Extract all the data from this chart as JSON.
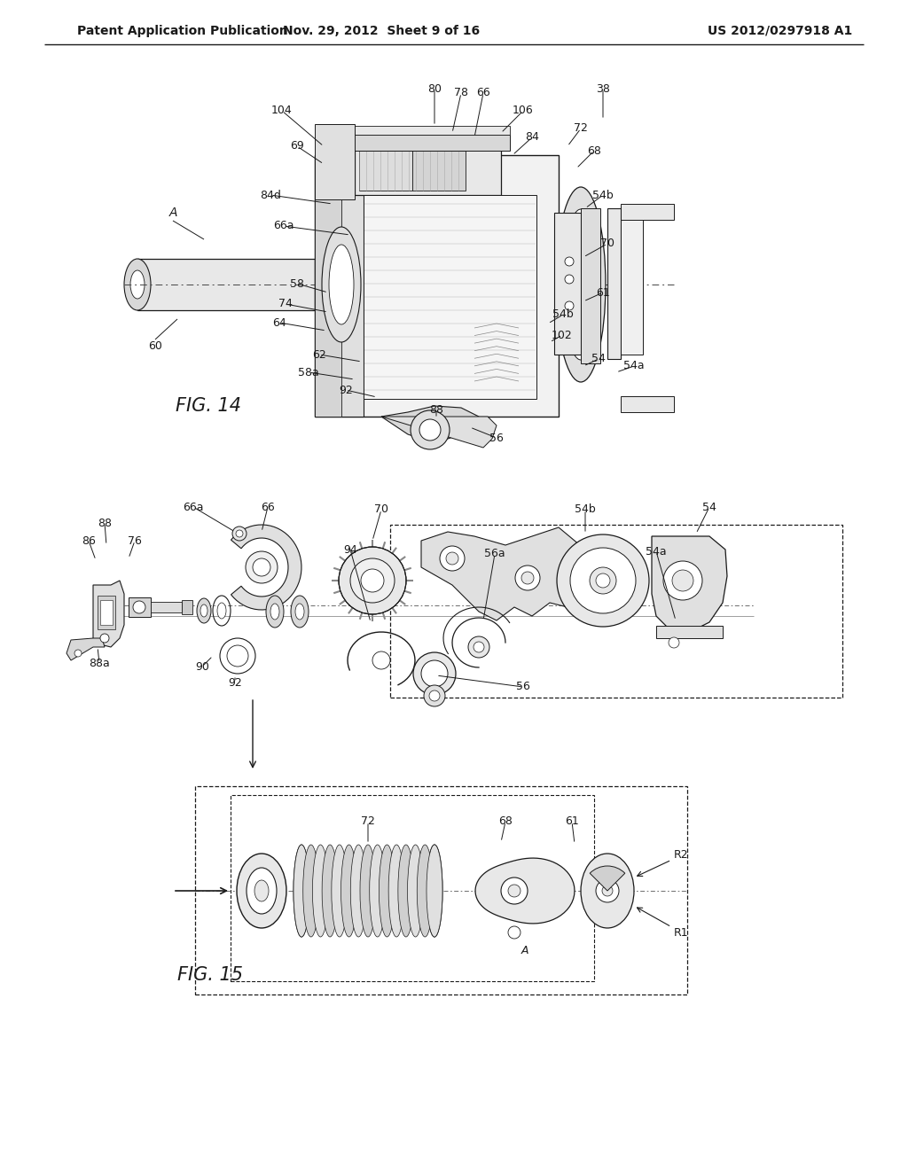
{
  "header_left": "Patent Application Publication",
  "header_mid": "Nov. 29, 2012  Sheet 9 of 16",
  "header_right": "US 2012/0297918 A1",
  "fig14_label": "FIG. 14",
  "fig15_label": "FIG. 15",
  "bg_color": "#ffffff",
  "line_color": "#1a1a1a",
  "header_fontsize": 10.5,
  "fig_label_fontsize": 15
}
